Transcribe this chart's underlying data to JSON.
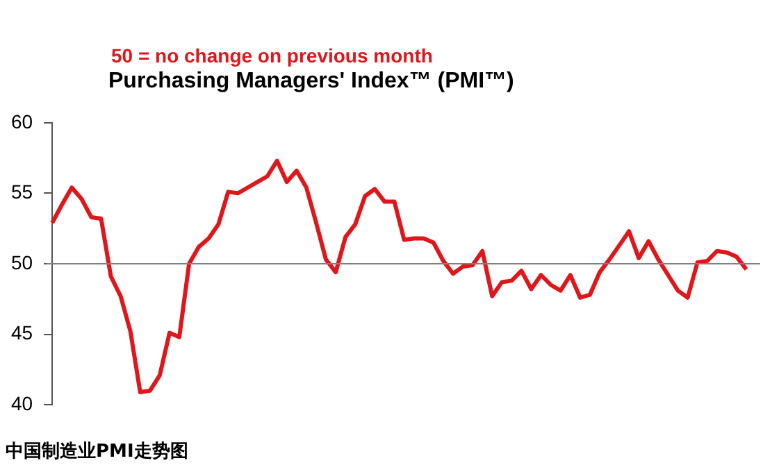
{
  "chart_data": {
    "type": "line",
    "title": "Purchasing Managers' Index™ (PMI™)",
    "annotations": [
      "50 =  no change on previous month",
      "中国制造业PMI走势图"
    ],
    "categories": [
      null,
      null,
      null,
      null,
      null,
      null,
      null,
      null,
      null,
      null,
      null,
      null,
      null,
      null,
      null,
      null,
      null,
      null,
      null,
      null,
      null,
      null,
      null,
      null,
      null,
      null,
      null,
      null,
      null,
      null,
      null,
      null,
      null,
      null,
      null,
      null,
      null,
      null,
      null,
      null,
      null,
      null,
      null,
      null,
      null,
      null,
      null,
      null,
      null,
      null,
      null,
      null,
      null,
      null,
      null,
      null,
      null,
      null,
      null,
      null,
      null,
      null,
      null,
      null,
      null,
      null,
      null,
      null,
      null,
      null,
      null,
      null
    ],
    "series": [
      {
        "color": "#e0161b",
        "values": [
          52.9,
          54.2,
          55.4,
          54.6,
          53.3,
          53.2,
          49.1,
          47.7,
          45.2,
          40.9,
          41.0,
          42.1,
          45.1,
          44.8,
          50.0,
          51.2,
          51.8,
          52.8,
          55.1,
          55.0,
          55.4,
          55.8,
          56.2,
          57.3,
          55.8,
          56.6,
          55.4,
          52.9,
          50.3,
          49.4,
          51.9,
          52.8,
          54.8,
          55.3,
          54.4,
          54.4,
          51.7,
          51.8,
          51.8,
          51.5,
          50.2,
          49.3,
          49.8,
          49.9,
          50.9,
          47.7,
          48.7,
          48.8,
          49.5,
          48.2,
          49.2,
          48.5,
          48.1,
          49.2,
          47.6,
          47.8,
          49.4,
          50.3,
          51.3,
          52.3,
          50.4,
          51.6,
          50.3,
          49.2,
          48.1,
          47.6,
          50.1,
          50.2,
          50.9,
          50.8,
          50.5,
          49.6
        ]
      }
    ],
    "ylim": [
      40,
      60
    ],
    "yticks": [
      40,
      45,
      50,
      55,
      60
    ],
    "ref_lines": [
      {
        "axis": "y",
        "value": 50,
        "color": "#808080"
      }
    ],
    "grid": false,
    "legend": false,
    "marker": "none",
    "line_style": "solid",
    "tick_labels": "y"
  }
}
